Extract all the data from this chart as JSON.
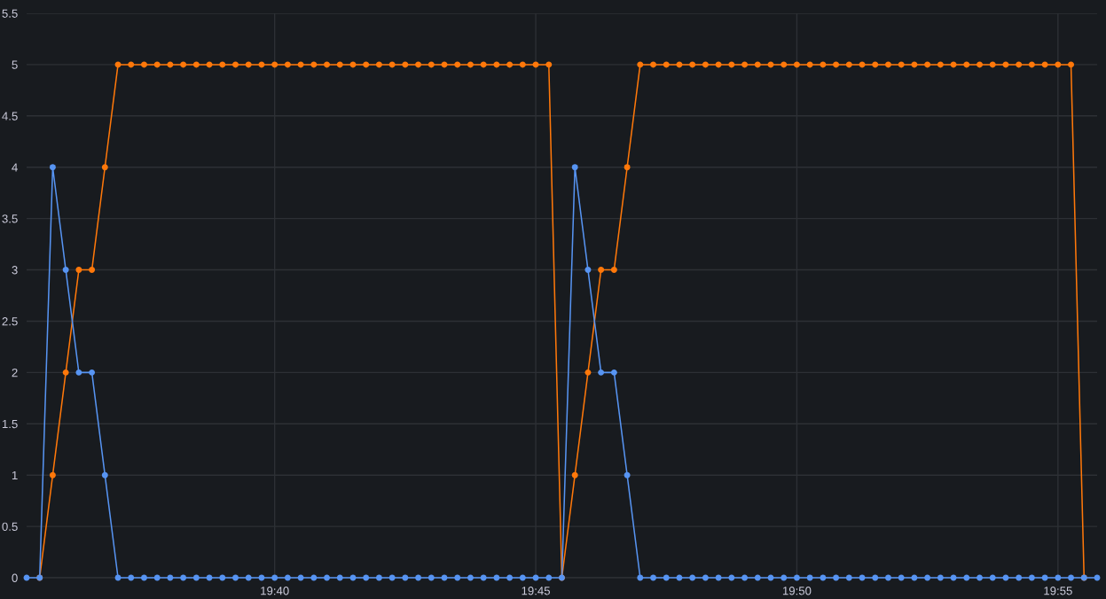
{
  "chart_data": {
    "type": "line",
    "x": [
      19.5875,
      19.59167,
      19.59583,
      19.6,
      19.60417,
      19.60833,
      19.6125,
      19.61667,
      19.62083,
      19.625,
      19.62917,
      19.63333,
      19.6375,
      19.64167,
      19.64583,
      19.65,
      19.65417,
      19.65833,
      19.6625,
      19.66667,
      19.67083,
      19.675,
      19.67917,
      19.68333,
      19.6875,
      19.69167,
      19.69583,
      19.7,
      19.70417,
      19.70833,
      19.7125,
      19.71667,
      19.72083,
      19.725,
      19.72917,
      19.73333,
      19.7375,
      19.74167,
      19.74583,
      19.75,
      19.75417,
      19.75833,
      19.7625,
      19.76667,
      19.77083,
      19.775,
      19.77917,
      19.78333,
      19.7875,
      19.79167,
      19.79583,
      19.8,
      19.80417,
      19.80833,
      19.8125,
      19.81667,
      19.82083,
      19.825,
      19.82917,
      19.83333,
      19.8375,
      19.84167,
      19.84583,
      19.85,
      19.85417,
      19.85833,
      19.8625,
      19.86667,
      19.87083,
      19.875,
      19.87917,
      19.88333,
      19.8875,
      19.89167,
      19.89583,
      19.9,
      19.90417,
      19.90833,
      19.9125,
      19.91667,
      19.92083,
      19.925,
      19.92917
    ],
    "series": [
      {
        "color": "#ff780a",
        "values": [
          null,
          0,
          1,
          2,
          3,
          3,
          4,
          5,
          5,
          5,
          5,
          5,
          5,
          5,
          5,
          5,
          5,
          5,
          5,
          5,
          5,
          5,
          5,
          5,
          5,
          5,
          5,
          5,
          5,
          5,
          5,
          5,
          5,
          5,
          5,
          5,
          5,
          5,
          5,
          5,
          5,
          0,
          1,
          2,
          3,
          3,
          4,
          5,
          5,
          5,
          5,
          5,
          5,
          5,
          5,
          5,
          5,
          5,
          5,
          5,
          5,
          5,
          5,
          5,
          5,
          5,
          5,
          5,
          5,
          5,
          5,
          5,
          5,
          5,
          5,
          5,
          5,
          5,
          5,
          5,
          5,
          0,
          null
        ]
      },
      {
        "color": "#5794f2",
        "values": [
          0,
          0,
          4,
          3,
          2,
          2,
          1,
          0,
          0,
          0,
          0,
          0,
          0,
          0,
          0,
          0,
          0,
          0,
          0,
          0,
          0,
          0,
          0,
          0,
          0,
          0,
          0,
          0,
          0,
          0,
          0,
          0,
          0,
          0,
          0,
          0,
          0,
          0,
          0,
          0,
          0,
          0,
          4,
          3,
          2,
          2,
          1,
          0,
          0,
          0,
          0,
          0,
          0,
          0,
          0,
          0,
          0,
          0,
          0,
          0,
          0,
          0,
          0,
          0,
          0,
          0,
          0,
          0,
          0,
          0,
          0,
          0,
          0,
          0,
          0,
          0,
          0,
          0,
          0,
          0,
          0,
          0,
          0
        ]
      }
    ],
    "xlim": [
      19.5875,
      19.92917
    ],
    "xticks": [
      {
        "value": 19.66667,
        "label": "19:40"
      },
      {
        "value": 19.75,
        "label": "19:45"
      },
      {
        "value": 19.83333,
        "label": "19:50"
      },
      {
        "value": 19.91667,
        "label": "19:55"
      }
    ],
    "ylim": [
      0,
      5.5
    ],
    "yticks": [
      0,
      0.5,
      1,
      1.5,
      2,
      2.5,
      3,
      3.5,
      4,
      4.5,
      5,
      5.5
    ],
    "grid": true,
    "marker": "circle",
    "line_style": "solid"
  }
}
